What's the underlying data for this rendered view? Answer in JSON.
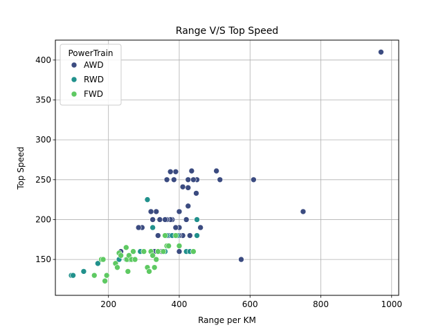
{
  "chart_data": {
    "type": "scatter",
    "title": "Range V/S Top Speed",
    "xlabel": "Range per KM",
    "ylabel": "Top Speed",
    "xlim": [
      50,
      1020
    ],
    "ylim": [
      105,
      425
    ],
    "xticks": [
      200,
      400,
      600,
      800,
      1000
    ],
    "yticks": [
      150,
      200,
      250,
      300,
      350,
      400
    ],
    "grid": true,
    "legend": {
      "title": "PowerTrain",
      "placement": "top-left"
    },
    "series": [
      {
        "name": "AWD",
        "color": "#3b4b80",
        "points": [
          [
            970,
            410
          ],
          [
            750,
            210
          ],
          [
            610,
            250
          ],
          [
            575,
            150
          ],
          [
            515,
            250
          ],
          [
            505,
            261
          ],
          [
            460,
            190
          ],
          [
            450,
            250
          ],
          [
            448,
            233
          ],
          [
            440,
            250
          ],
          [
            435,
            261
          ],
          [
            430,
            180
          ],
          [
            425,
            217
          ],
          [
            425,
            240
          ],
          [
            425,
            250
          ],
          [
            420,
            200
          ],
          [
            420,
            160
          ],
          [
            410,
            241
          ],
          [
            410,
            180
          ],
          [
            400,
            210
          ],
          [
            400,
            190
          ],
          [
            400,
            180
          ],
          [
            400,
            160
          ],
          [
            390,
            260
          ],
          [
            390,
            190
          ],
          [
            385,
            250
          ],
          [
            380,
            200
          ],
          [
            375,
            260
          ],
          [
            375,
            200
          ],
          [
            370,
            180
          ],
          [
            365,
            250
          ],
          [
            365,
            200
          ],
          [
            360,
            200
          ],
          [
            350,
            160
          ],
          [
            345,
            200
          ],
          [
            340,
            180
          ],
          [
            335,
            210
          ],
          [
            330,
            160
          ],
          [
            320,
            210
          ],
          [
            320,
            160
          ],
          [
            325,
            200
          ],
          [
            295,
            190
          ],
          [
            285,
            190
          ],
          [
            230,
            150
          ],
          [
            235,
            160
          ]
        ]
      },
      {
        "name": "RWD",
        "color": "#21918c",
        "points": [
          [
            95,
            130
          ],
          [
            100,
            130
          ],
          [
            130,
            135
          ],
          [
            170,
            145
          ],
          [
            230,
            150
          ],
          [
            250,
            150
          ],
          [
            260,
            150
          ],
          [
            290,
            160
          ],
          [
            310,
            225
          ],
          [
            325,
            190
          ],
          [
            340,
            160
          ],
          [
            360,
            160
          ],
          [
            365,
            180
          ],
          [
            380,
            180
          ],
          [
            395,
            180
          ],
          [
            420,
            160
          ],
          [
            430,
            160
          ],
          [
            450,
            180
          ],
          [
            450,
            200
          ]
        ]
      },
      {
        "name": "FWD",
        "color": "#5ec962",
        "points": [
          [
            160,
            130
          ],
          [
            180,
            150
          ],
          [
            185,
            150
          ],
          [
            190,
            123
          ],
          [
            195,
            130
          ],
          [
            220,
            145
          ],
          [
            225,
            140
          ],
          [
            230,
            158
          ],
          [
            235,
            155
          ],
          [
            250,
            165
          ],
          [
            252,
            150
          ],
          [
            255,
            135
          ],
          [
            258,
            155
          ],
          [
            265,
            150
          ],
          [
            270,
            160
          ],
          [
            275,
            150
          ],
          [
            300,
            160
          ],
          [
            310,
            140
          ],
          [
            315,
            135
          ],
          [
            320,
            160
          ],
          [
            325,
            155
          ],
          [
            330,
            140
          ],
          [
            335,
            150
          ],
          [
            340,
            160
          ],
          [
            355,
            160
          ],
          [
            360,
            180
          ],
          [
            365,
            167
          ],
          [
            370,
            167
          ],
          [
            390,
            180
          ],
          [
            400,
            167
          ],
          [
            440,
            160
          ]
        ]
      }
    ]
  }
}
